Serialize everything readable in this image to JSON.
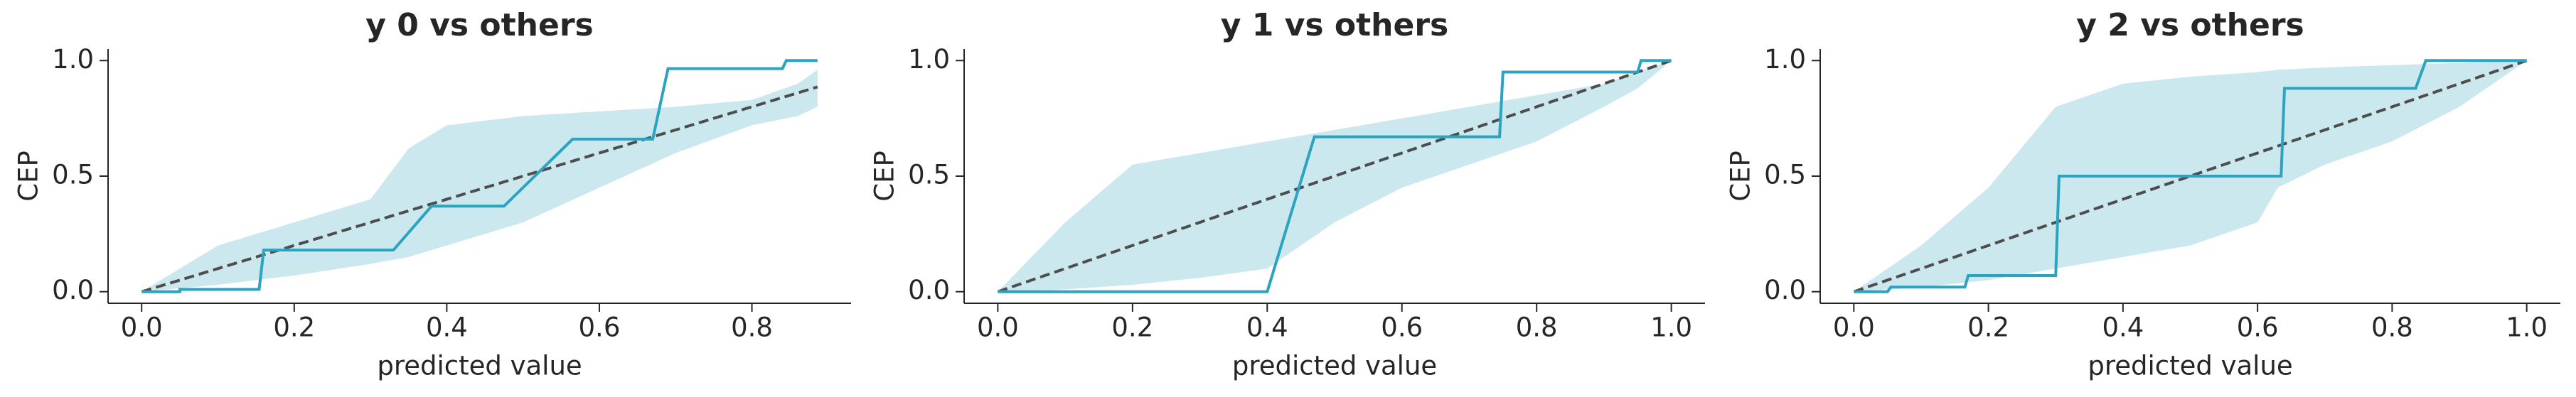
{
  "chart_data": [
    {
      "type": "line",
      "title": "y 0 vs others",
      "xlabel": "predicted value",
      "ylabel": "CEP",
      "xlim": [
        -0.044,
        0.93
      ],
      "ylim": [
        -0.05,
        1.05
      ],
      "xticks": [
        {
          "value": 0,
          "label": "0.0"
        },
        0.2,
        0.4,
        0.6,
        0.8
      ],
      "yticks": [
        {
          "value": 0,
          "label": "0.0"
        },
        0.5,
        {
          "value": 1,
          "label": "1.0"
        }
      ],
      "band": {
        "color": "#cbe8ef",
        "x": [
          0,
          0.1,
          0.2,
          0.3,
          0.35,
          0.4,
          0.5,
          0.6,
          0.7,
          0.8,
          0.86,
          0.886
        ],
        "upper": [
          0,
          0.2,
          0.3,
          0.4,
          0.62,
          0.72,
          0.76,
          0.78,
          0.8,
          0.83,
          0.9,
          0.96
        ],
        "lower": [
          0,
          0.03,
          0.07,
          0.12,
          0.15,
          0.2,
          0.3,
          0.45,
          0.6,
          0.72,
          0.76,
          0.8
        ]
      },
      "line": {
        "color": "#2ba3c1",
        "x": [
          0,
          0.05,
          0.05,
          0.154,
          0.16,
          0.33,
          0.38,
          0.475,
          0.565,
          0.67,
          0.69,
          0.84,
          0.845,
          0.886
        ],
        "y": [
          0,
          0,
          0.01,
          0.01,
          0.18,
          0.18,
          0.37,
          0.37,
          0.66,
          0.66,
          0.965,
          0.965,
          1,
          1
        ]
      },
      "reference": {
        "color": "#4d4d4d",
        "x": [
          0,
          0.886
        ],
        "y": [
          0,
          0.886
        ]
      }
    },
    {
      "type": "line",
      "title": "y 1 vs others",
      "xlabel": "predicted value",
      "ylabel": "CEP",
      "xlim": [
        -0.05,
        1.05
      ],
      "ylim": [
        -0.05,
        1.05
      ],
      "xticks": [
        {
          "value": 0,
          "label": "0.0"
        },
        0.2,
        0.4,
        0.6,
        0.8,
        {
          "value": 1,
          "label": "1.0"
        }
      ],
      "yticks": [
        {
          "value": 0,
          "label": "0.0"
        },
        0.5,
        {
          "value": 1,
          "label": "1.0"
        }
      ],
      "band": {
        "color": "#cbe8ef",
        "x": [
          0,
          0.1,
          0.2,
          0.3,
          0.4,
          0.5,
          0.6,
          0.7,
          0.8,
          0.9,
          0.95,
          1
        ],
        "upper": [
          0,
          0.3,
          0.55,
          0.6,
          0.65,
          0.7,
          0.75,
          0.8,
          0.85,
          0.9,
          0.95,
          1
        ],
        "lower": [
          0,
          0.01,
          0.03,
          0.06,
          0.1,
          0.3,
          0.45,
          0.55,
          0.65,
          0.8,
          0.88,
          1
        ]
      },
      "line": {
        "color": "#2ba3c1",
        "x": [
          0,
          0.4,
          0.47,
          0.745,
          0.75,
          0.95,
          0.955,
          1
        ],
        "y": [
          0,
          0,
          0.67,
          0.67,
          0.95,
          0.95,
          1,
          1
        ]
      },
      "reference": {
        "color": "#4d4d4d",
        "x": [
          0,
          1
        ],
        "y": [
          0,
          1
        ]
      }
    },
    {
      "type": "line",
      "title": "y 2 vs others",
      "xlabel": "predicted value",
      "ylabel": "CEP",
      "xlim": [
        -0.05,
        1.05
      ],
      "ylim": [
        -0.05,
        1.05
      ],
      "xticks": [
        {
          "value": 0,
          "label": "0.0"
        },
        0.2,
        0.4,
        0.6,
        0.8,
        {
          "value": 1,
          "label": "1.0"
        }
      ],
      "yticks": [
        {
          "value": 0,
          "label": "0.0"
        },
        0.5,
        {
          "value": 1,
          "label": "1.0"
        }
      ],
      "band": {
        "color": "#cbe8ef",
        "x": [
          0,
          0.1,
          0.2,
          0.3,
          0.4,
          0.5,
          0.6,
          0.63,
          0.7,
          0.8,
          0.9,
          1
        ],
        "upper": [
          0,
          0.2,
          0.45,
          0.8,
          0.9,
          0.93,
          0.95,
          0.96,
          0.97,
          0.98,
          0.99,
          1
        ],
        "lower": [
          0,
          0.02,
          0.05,
          0.1,
          0.15,
          0.2,
          0.3,
          0.45,
          0.55,
          0.65,
          0.8,
          1
        ]
      },
      "line": {
        "color": "#2ba3c1",
        "x": [
          0,
          0.05,
          0.055,
          0.165,
          0.17,
          0.3,
          0.305,
          0.635,
          0.64,
          0.835,
          0.85,
          1
        ],
        "y": [
          0,
          0,
          0.02,
          0.02,
          0.07,
          0.07,
          0.5,
          0.5,
          0.88,
          0.88,
          1,
          1
        ]
      },
      "reference": {
        "color": "#4d4d4d",
        "x": [
          0,
          1
        ],
        "y": [
          0,
          1
        ]
      }
    }
  ]
}
